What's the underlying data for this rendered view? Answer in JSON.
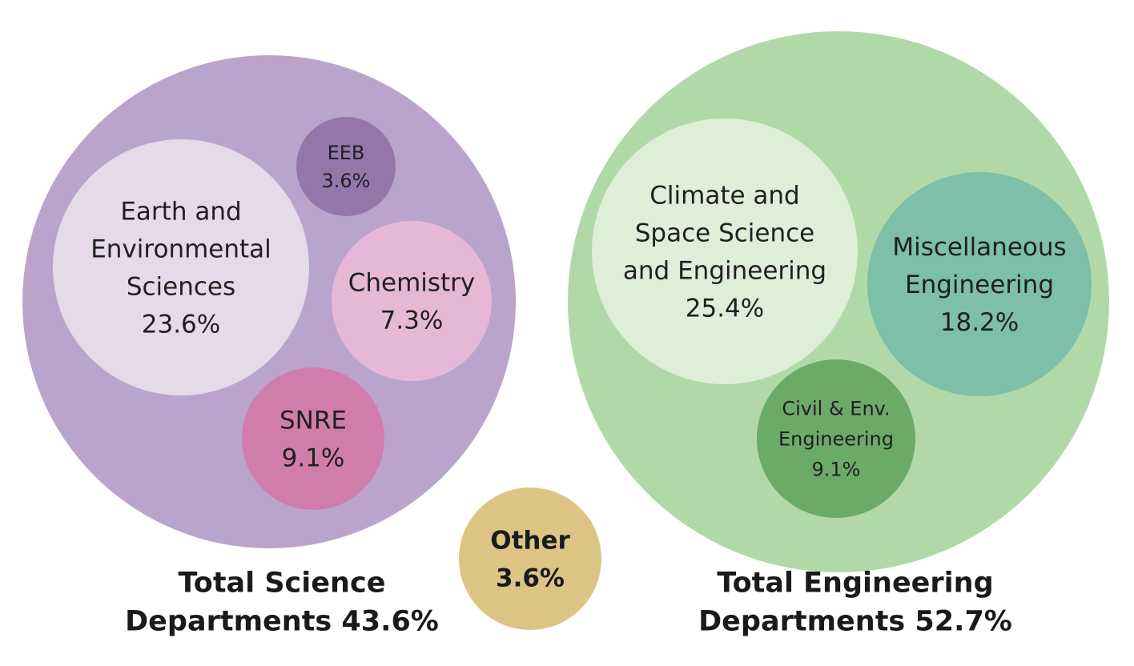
{
  "chart_data": {
    "type": "bubble",
    "groups": [
      {
        "name": "Total Science",
        "label_lines": [
          "Total Science",
          "Departments 43.6%"
        ],
        "value": 43.6,
        "color": "#bba4cc",
        "items": [
          {
            "name": "Earth and Environmental Sciences",
            "label_lines": [
              "Earth and",
              "Environmental",
              "Sciences",
              "23.6%"
            ],
            "value": 23.6,
            "color": "#e6d9ea"
          },
          {
            "name": "EEB",
            "label_lines": [
              "EEB",
              "3.6%"
            ],
            "value": 3.6,
            "color": "#9576aa"
          },
          {
            "name": "Chemistry",
            "label_lines": [
              "Chemistry",
              "7.3%"
            ],
            "value": 7.3,
            "color": "#e6b8d8"
          },
          {
            "name": "SNRE",
            "label_lines": [
              "SNRE",
              "9.1%"
            ],
            "value": 9.1,
            "color": "#d17dac"
          }
        ]
      },
      {
        "name": "Total Engineering",
        "label_lines": [
          "Total Engineering",
          "Departments 52.7%"
        ],
        "value": 52.7,
        "color": "#b1d9a7",
        "items": [
          {
            "name": "Climate and Space Science and Engineering",
            "label_lines": [
              "Climate and",
              "Space Science",
              "and Engineering",
              "25.4%"
            ],
            "value": 25.4,
            "color": "#deefd8"
          },
          {
            "name": "Miscellaneous Engineering",
            "label_lines": [
              "Miscellaneous",
              "Engineering",
              "18.2%"
            ],
            "value": 18.2,
            "color": "#7dbfa8"
          },
          {
            "name": "Civil & Env. Engineering",
            "label_lines": [
              "Civil & Env.",
              "Engineering",
              "9.1%"
            ],
            "value": 9.1,
            "color": "#6cab67"
          }
        ]
      }
    ],
    "other": {
      "name": "Other",
      "label_lines": [
        "Other",
        "3.6%"
      ],
      "value": 3.6,
      "color": "#dcc485"
    }
  }
}
